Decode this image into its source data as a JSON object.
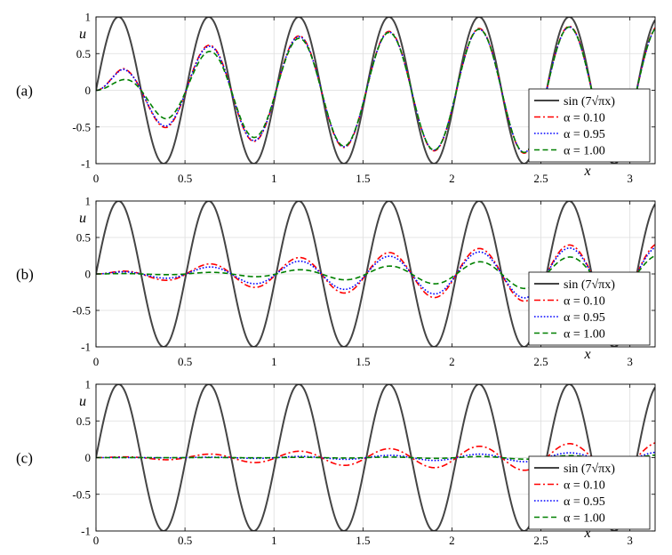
{
  "chart_data": [
    {
      "type": "line",
      "panel_label": "(a)",
      "xlabel": "x",
      "ylabel": "u",
      "xlim": [
        0,
        3.14159
      ],
      "ylim": [
        -1,
        1
      ],
      "xticks": [
        "0",
        "0.5",
        "1",
        "1.5",
        "2",
        "2.5",
        "3"
      ],
      "yticks": [
        "1",
        "0.5",
        "0",
        "-0.5",
        "-1"
      ],
      "grid": true,
      "legend_position": "bottom-right",
      "series": [
        {
          "name": "sin (7√πx)",
          "color": "#444444",
          "dash": "solid",
          "amplitude": [
            [
              0,
              1
            ],
            [
              3.14159,
              1
            ]
          ]
        },
        {
          "name": "α = 0.10",
          "color": "#ff0000",
          "dash": "dashdot",
          "amplitude": [
            [
              0,
              0.0
            ],
            [
              0.15,
              0.31
            ],
            [
              0.4,
              0.52
            ],
            [
              0.8,
              0.68
            ],
            [
              1.3,
              0.77
            ],
            [
              1.95,
              0.83
            ],
            [
              2.8,
              0.88
            ],
            [
              3.14159,
              0.89
            ]
          ]
        },
        {
          "name": "α = 0.95",
          "color": "#0000ff",
          "dash": "dotted",
          "amplitude": [
            [
              0,
              0.0
            ],
            [
              0.15,
              0.3
            ],
            [
              0.4,
              0.5
            ],
            [
              0.8,
              0.67
            ],
            [
              1.3,
              0.76
            ],
            [
              1.95,
              0.82
            ],
            [
              2.8,
              0.87
            ],
            [
              3.14159,
              0.88
            ]
          ]
        },
        {
          "name": "α = 1.00",
          "color": "#008000",
          "dash": "dashed",
          "amplitude": [
            [
              0,
              0.0
            ],
            [
              0.15,
              0.15
            ],
            [
              0.4,
              0.4
            ],
            [
              0.8,
              0.62
            ],
            [
              1.3,
              0.75
            ],
            [
              1.95,
              0.82
            ],
            [
              2.8,
              0.87
            ],
            [
              3.14159,
              0.88
            ]
          ]
        }
      ],
      "legend": [
        "sin (7√πx)",
        "α = 0.10",
        "α = 0.95",
        "α = 1.00"
      ]
    },
    {
      "type": "line",
      "panel_label": "(b)",
      "xlabel": "x",
      "ylabel": "u",
      "xlim": [
        0,
        3.14159
      ],
      "ylim": [
        -1,
        1
      ],
      "xticks": [
        "0",
        "0.5",
        "1",
        "1.5",
        "2",
        "2.5",
        "3"
      ],
      "yticks": [
        "1",
        "0.5",
        "0",
        "-0.5",
        "-1"
      ],
      "grid": true,
      "legend_position": "bottom-right",
      "series": [
        {
          "name": "sin (7√πx)",
          "color": "#444444",
          "dash": "solid",
          "amplitude": [
            [
              0,
              1
            ],
            [
              3.14159,
              1
            ]
          ]
        },
        {
          "name": "α = 0.10",
          "color": "#ff0000",
          "dash": "dashdot",
          "amplitude": [
            [
              0,
              0.0
            ],
            [
              0.15,
              0.04
            ],
            [
              0.4,
              0.09
            ],
            [
              0.8,
              0.17
            ],
            [
              1.3,
              0.25
            ],
            [
              1.95,
              0.33
            ],
            [
              2.8,
              0.41
            ],
            [
              3.14159,
              0.42
            ]
          ]
        },
        {
          "name": "α = 0.95",
          "color": "#0000ff",
          "dash": "dotted",
          "amplitude": [
            [
              0,
              0.0
            ],
            [
              0.15,
              0.03
            ],
            [
              0.4,
              0.06
            ],
            [
              0.8,
              0.12
            ],
            [
              1.3,
              0.2
            ],
            [
              1.95,
              0.28
            ],
            [
              2.8,
              0.37
            ],
            [
              3.14159,
              0.38
            ]
          ]
        },
        {
          "name": "α = 1.00",
          "color": "#008000",
          "dash": "dashed",
          "amplitude": [
            [
              0,
              0.0
            ],
            [
              0.15,
              0.005
            ],
            [
              0.4,
              0.01
            ],
            [
              0.8,
              0.03
            ],
            [
              1.3,
              0.07
            ],
            [
              1.95,
              0.14
            ],
            [
              2.8,
              0.25
            ],
            [
              3.14159,
              0.26
            ]
          ]
        }
      ],
      "legend": [
        "sin (7√πx)",
        "α = 0.10",
        "α = 0.95",
        "α = 1.00"
      ]
    },
    {
      "type": "line",
      "panel_label": "(c)",
      "xlabel": "x",
      "ylabel": "u",
      "xlim": [
        0,
        3.14159
      ],
      "ylim": [
        -1,
        1
      ],
      "xticks": [
        "0",
        "0.5",
        "1",
        "1.5",
        "2",
        "2.5",
        "3"
      ],
      "yticks": [
        "1",
        "0.5",
        "0",
        "-0.5",
        "-1"
      ],
      "grid": true,
      "legend_position": "bottom-right",
      "series": [
        {
          "name": "sin (7√πx)",
          "color": "#444444",
          "dash": "solid",
          "amplitude": [
            [
              0,
              1
            ],
            [
              3.14159,
              1
            ]
          ]
        },
        {
          "name": "α = 0.10",
          "color": "#ff0000",
          "dash": "dashdot",
          "amplitude": [
            [
              0,
              0.0
            ],
            [
              0.15,
              0.01
            ],
            [
              0.4,
              0.03
            ],
            [
              0.8,
              0.06
            ],
            [
              1.3,
              0.1
            ],
            [
              1.95,
              0.14
            ],
            [
              2.8,
              0.2
            ],
            [
              3.14159,
              0.21
            ]
          ]
        },
        {
          "name": "α = 0.95",
          "color": "#0000ff",
          "dash": "dotted",
          "amplitude": [
            [
              0,
              0.0
            ],
            [
              0.4,
              0.003
            ],
            [
              0.8,
              0.008
            ],
            [
              1.3,
              0.02
            ],
            [
              1.95,
              0.04
            ],
            [
              2.8,
              0.07
            ],
            [
              3.14159,
              0.075
            ]
          ]
        },
        {
          "name": "α = 1.00",
          "color": "#008000",
          "dash": "dashed",
          "amplitude": [
            [
              0,
              0.0
            ],
            [
              0.8,
              0.002
            ],
            [
              1.3,
              0.005
            ],
            [
              1.95,
              0.01
            ],
            [
              2.8,
              0.03
            ],
            [
              3.14159,
              0.035
            ]
          ]
        }
      ],
      "legend": [
        "sin (7√πx)",
        "α = 0.10",
        "α = 0.95",
        "α = 1.00"
      ]
    }
  ]
}
